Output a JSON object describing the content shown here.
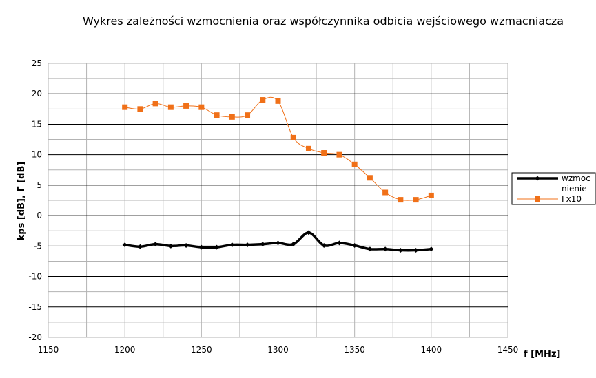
{
  "chart_data": {
    "type": "line",
    "title": "Wykres zależności wzmocnienia oraz współczynnika odbicia wejściowego wzmacniacza",
    "xlabel": "f [MHz]",
    "ylabel": "kps [dB], Γ [dB]",
    "xlim": [
      1150,
      1450
    ],
    "ylim": [
      -20,
      25
    ],
    "x_ticks": [
      "1150",
      "1200",
      "1250",
      "1300",
      "1350",
      "1400",
      "1450"
    ],
    "y_ticks": [
      "25",
      "20",
      "15",
      "10",
      "5",
      "0",
      "-5",
      "-10",
      "-15",
      "-20"
    ],
    "grid": true,
    "legend_position": "right",
    "series": [
      {
        "name": "wzmocnienie",
        "legend_lines": [
          "wzmoc",
          "nienie"
        ],
        "color": "#000000",
        "marker": "diamond",
        "x": [
          1200,
          1210,
          1220,
          1230,
          1240,
          1250,
          1260,
          1270,
          1280,
          1290,
          1300,
          1310,
          1320,
          1330,
          1340,
          1350,
          1360,
          1370,
          1380,
          1390,
          1400
        ],
        "y": [
          -4.8,
          -5.1,
          -4.7,
          -5.0,
          -4.9,
          -5.2,
          -5.2,
          -4.8,
          -4.8,
          -4.7,
          -4.5,
          -4.7,
          -2.8,
          -4.9,
          -4.5,
          -4.9,
          -5.5,
          -5.5,
          -5.7,
          -5.7,
          -5.5
        ]
      },
      {
        "name": "Γx10",
        "legend_lines": [
          "Γx10"
        ],
        "color": "#f07018",
        "marker": "square",
        "x": [
          1200,
          1210,
          1220,
          1230,
          1240,
          1250,
          1260,
          1270,
          1280,
          1290,
          1300,
          1310,
          1320,
          1330,
          1340,
          1350,
          1360,
          1370,
          1380,
          1390,
          1400
        ],
        "y": [
          17.8,
          17.5,
          18.4,
          17.8,
          18.0,
          17.8,
          16.5,
          16.2,
          16.5,
          19.0,
          18.8,
          12.8,
          11.0,
          10.3,
          10.0,
          8.4,
          6.2,
          3.8,
          2.6,
          2.6,
          3.3
        ]
      }
    ]
  }
}
